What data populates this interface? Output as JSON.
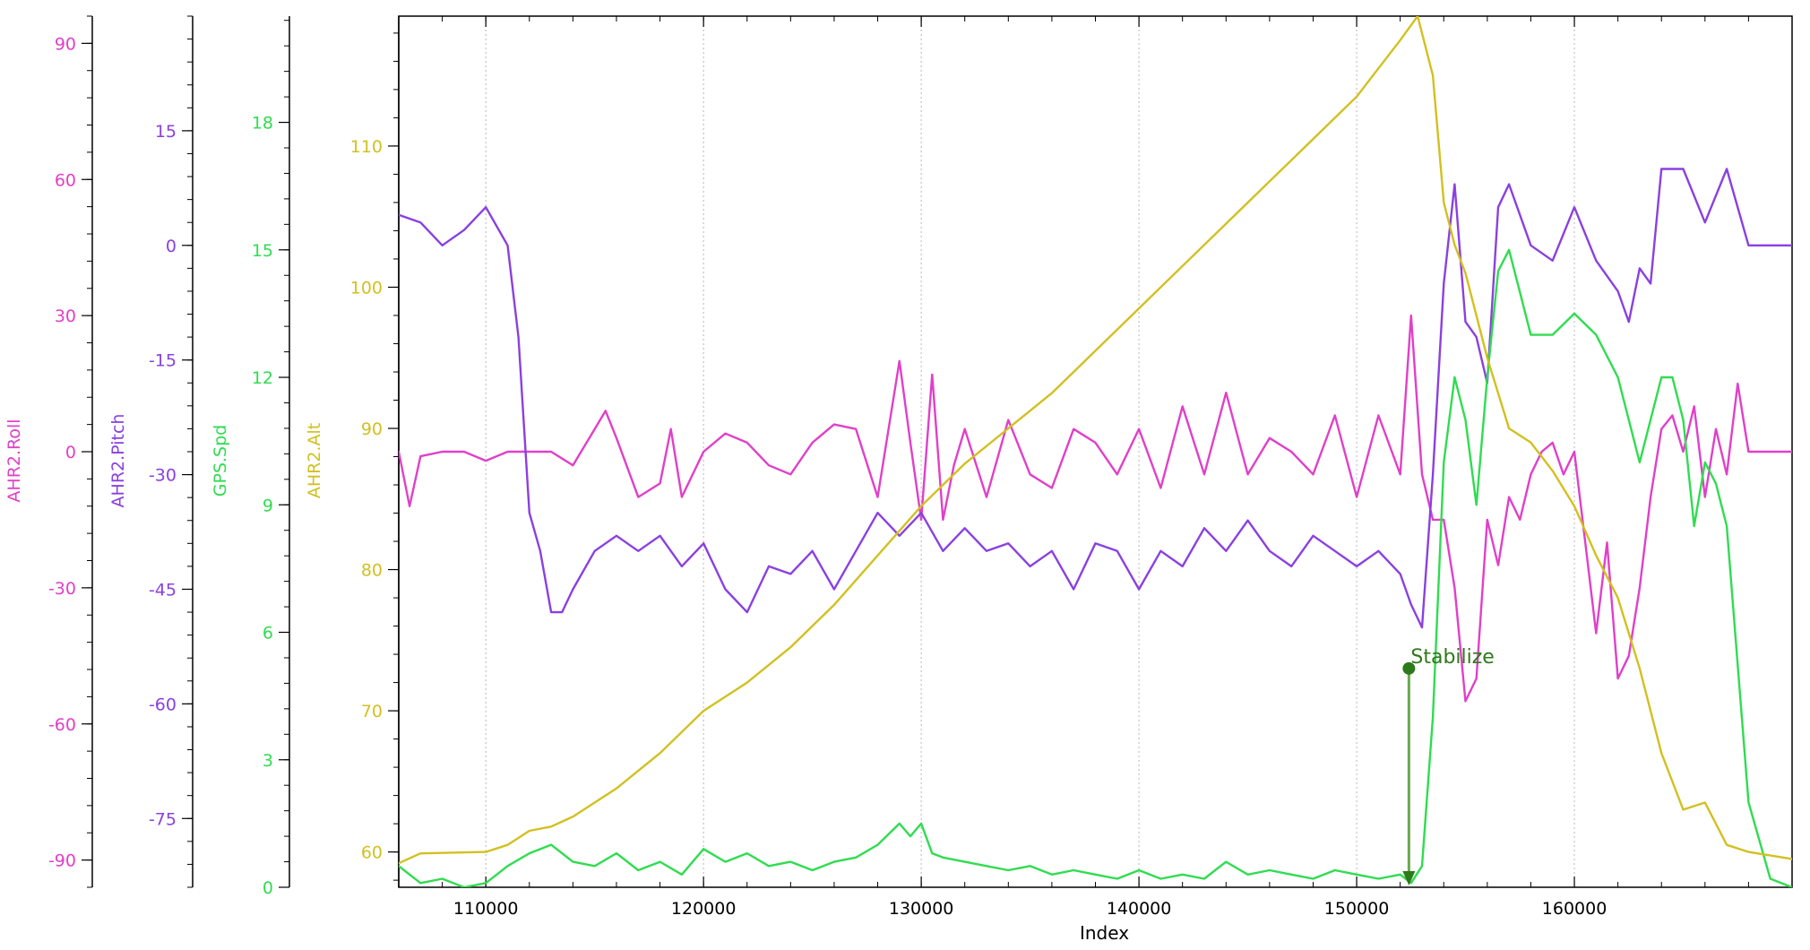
{
  "chart_data": {
    "type": "line",
    "xlabel": "Index",
    "xlim": [
      106000,
      170000
    ],
    "x_ticks": [
      110000,
      120000,
      130000,
      140000,
      150000,
      160000
    ],
    "axes": [
      {
        "id": "roll",
        "label": "AHR2.Roll",
        "color": "#e040c8",
        "ylim": [
          -96,
          96
        ],
        "ticks": [
          -90,
          -60,
          -30,
          0,
          30,
          60,
          90
        ]
      },
      {
        "id": "pitch",
        "label": "AHR2.Pitch",
        "color": "#8a40e0",
        "ylim": [
          -84,
          30
        ],
        "ticks": [
          -75,
          -60,
          -45,
          -30,
          -15,
          0,
          15
        ]
      },
      {
        "id": "spd",
        "label": "GPS.Spd",
        "color": "#30dc50",
        "ylim": [
          0,
          20.5
        ],
        "ticks": [
          0,
          3,
          6,
          9,
          12,
          15,
          18
        ]
      },
      {
        "id": "alt",
        "label": "AHR2.Alt",
        "color": "#d2c020",
        "ylim": [
          57.5,
          119.2
        ],
        "ticks": [
          60,
          70,
          80,
          90,
          100,
          110
        ]
      }
    ],
    "series": [
      {
        "name": "AHR2.Roll",
        "axis": "roll",
        "color": "#e040c8",
        "x": [
          106000,
          106500,
          107000,
          108000,
          109000,
          110000,
          111000,
          112000,
          113000,
          114000,
          115000,
          115500,
          116000,
          117000,
          118000,
          118500,
          119000,
          120000,
          121000,
          122000,
          123000,
          124000,
          125000,
          126000,
          127000,
          128000,
          129000,
          129500,
          130000,
          130500,
          131000,
          131500,
          132000,
          133000,
          134000,
          135000,
          136000,
          137000,
          138000,
          139000,
          140000,
          141000,
          142000,
          143000,
          144000,
          145000,
          146000,
          147000,
          148000,
          149000,
          150000,
          151000,
          152000,
          152500,
          153000,
          153500,
          154000,
          154500,
          155000,
          155500,
          156000,
          156500,
          157000,
          157500,
          158000,
          158500,
          159000,
          159500,
          160000,
          160500,
          161000,
          161500,
          162000,
          162500,
          163000,
          163500,
          164000,
          164500,
          165000,
          165500,
          166000,
          166500,
          167000,
          167500,
          168000,
          169000,
          170000
        ],
        "y": [
          0,
          -12,
          -1,
          0,
          0,
          -2,
          0,
          0,
          0,
          -3,
          5,
          9,
          3,
          -10,
          -7,
          5,
          -10,
          0,
          4,
          2,
          -3,
          -5,
          2,
          6,
          5,
          -10,
          20,
          2,
          -15,
          17,
          -15,
          -3,
          5,
          -10,
          7,
          -5,
          -8,
          5,
          2,
          -5,
          5,
          -8,
          10,
          -5,
          13,
          -5,
          3,
          0,
          -5,
          8,
          -10,
          8,
          -5,
          30,
          -5,
          -15,
          -15,
          -30,
          -55,
          -50,
          -15,
          -25,
          -10,
          -15,
          -5,
          0,
          2,
          -5,
          0,
          -20,
          -40,
          -20,
          -50,
          -45,
          -30,
          -10,
          5,
          8,
          0,
          10,
          -10,
          5,
          -5,
          15,
          0,
          0,
          0
        ]
      },
      {
        "name": "AHR2.Pitch",
        "axis": "pitch",
        "color": "#8a40e0",
        "x": [
          106000,
          107000,
          108000,
          109000,
          110000,
          111000,
          111500,
          112000,
          112500,
          113000,
          113500,
          114000,
          115000,
          116000,
          117000,
          118000,
          119000,
          120000,
          121000,
          122000,
          123000,
          124000,
          125000,
          126000,
          127000,
          128000,
          129000,
          130000,
          131000,
          132000,
          133000,
          134000,
          135000,
          136000,
          137000,
          138000,
          139000,
          140000,
          141000,
          142000,
          143000,
          144000,
          145000,
          146000,
          147000,
          148000,
          149000,
          150000,
          151000,
          152000,
          152500,
          153000,
          153500,
          154000,
          154500,
          155000,
          155500,
          156000,
          156500,
          157000,
          158000,
          159000,
          160000,
          161000,
          162000,
          162500,
          163000,
          163500,
          164000,
          165000,
          166000,
          167000,
          168000,
          169000,
          170000
        ],
        "y": [
          4,
          3,
          0,
          2,
          5,
          0,
          -12,
          -35,
          -40,
          -48,
          -48,
          -45,
          -40,
          -38,
          -40,
          -38,
          -42,
          -39,
          -45,
          -48,
          -42,
          -43,
          -40,
          -45,
          -40,
          -35,
          -38,
          -35,
          -40,
          -37,
          -40,
          -39,
          -42,
          -40,
          -45,
          -39,
          -40,
          -45,
          -40,
          -42,
          -37,
          -40,
          -36,
          -40,
          -42,
          -38,
          -40,
          -42,
          -40,
          -43,
          -47,
          -50,
          -30,
          -5,
          8,
          -10,
          -12,
          -18,
          5,
          8,
          0,
          -2,
          5,
          -2,
          -6,
          -10,
          -3,
          -5,
          10,
          10,
          3,
          10,
          0,
          0,
          0
        ]
      },
      {
        "name": "GPS.Spd",
        "axis": "spd",
        "color": "#30dc50",
        "x": [
          106000,
          107000,
          108000,
          109000,
          110000,
          111000,
          112000,
          113000,
          114000,
          115000,
          116000,
          117000,
          118000,
          119000,
          120000,
          121000,
          122000,
          123000,
          124000,
          125000,
          126000,
          127000,
          128000,
          129000,
          129500,
          130000,
          130500,
          131000,
          132000,
          133000,
          134000,
          135000,
          136000,
          137000,
          138000,
          139000,
          140000,
          141000,
          142000,
          143000,
          144000,
          145000,
          146000,
          147000,
          148000,
          149000,
          150000,
          151000,
          152000,
          152500,
          153000,
          153500,
          154000,
          154500,
          155000,
          155500,
          156000,
          156500,
          157000,
          157500,
          158000,
          159000,
          160000,
          161000,
          162000,
          163000,
          164000,
          164500,
          165000,
          165500,
          166000,
          166500,
          167000,
          168000,
          169000,
          170000
        ],
        "y": [
          0.5,
          0.1,
          0.2,
          0.0,
          0.1,
          0.5,
          0.8,
          1.0,
          0.6,
          0.5,
          0.8,
          0.4,
          0.6,
          0.3,
          0.9,
          0.6,
          0.8,
          0.5,
          0.6,
          0.4,
          0.6,
          0.7,
          1.0,
          1.5,
          1.2,
          1.5,
          0.8,
          0.7,
          0.6,
          0.5,
          0.4,
          0.5,
          0.3,
          0.4,
          0.3,
          0.2,
          0.4,
          0.2,
          0.3,
          0.2,
          0.6,
          0.3,
          0.4,
          0.3,
          0.2,
          0.4,
          0.3,
          0.2,
          0.3,
          0.1,
          0.5,
          4.0,
          10.0,
          12.0,
          11.0,
          9.0,
          12.0,
          14.5,
          15.0,
          14.0,
          13.0,
          13.0,
          13.5,
          13.0,
          12.0,
          10.0,
          12.0,
          12.0,
          11.0,
          8.5,
          10.0,
          9.5,
          8.5,
          2.0,
          0.2,
          0.0
        ]
      },
      {
        "name": "AHR2.Alt",
        "axis": "alt",
        "color": "#d2c020",
        "x": [
          106000,
          107000,
          110000,
          111000,
          112000,
          113000,
          114000,
          116000,
          118000,
          120000,
          122000,
          124000,
          126000,
          128000,
          130000,
          132000,
          134000,
          136000,
          138000,
          140000,
          142000,
          144000,
          146000,
          148000,
          150000,
          152000,
          152800,
          153500,
          154000,
          154500,
          155000,
          156000,
          157000,
          158000,
          159000,
          160000,
          161000,
          162000,
          163000,
          164000,
          165000,
          166000,
          167000,
          168000,
          170000
        ],
        "y": [
          59.2,
          59.9,
          60.0,
          60.5,
          61.5,
          61.8,
          62.5,
          64.5,
          67.0,
          70.0,
          72.0,
          74.5,
          77.5,
          81.0,
          84.5,
          87.5,
          90.0,
          92.5,
          95.5,
          98.5,
          101.5,
          104.5,
          107.5,
          110.5,
          113.5,
          117.5,
          119.2,
          115.0,
          106.0,
          103.0,
          101.0,
          95.0,
          90.0,
          89.0,
          87.0,
          84.5,
          81.0,
          78.0,
          73.0,
          67.0,
          63.0,
          63.5,
          60.5,
          60.0,
          59.5
        ]
      }
    ],
    "annotations": [
      {
        "label": "Stabilize",
        "x": 152400,
        "y_alt": 73.0,
        "color": "#2d7a1a",
        "marker": "dot",
        "arrow_to_bottom": true
      }
    ],
    "grid": {
      "x": true,
      "y": false,
      "style": "dotted"
    },
    "legend": "none"
  }
}
